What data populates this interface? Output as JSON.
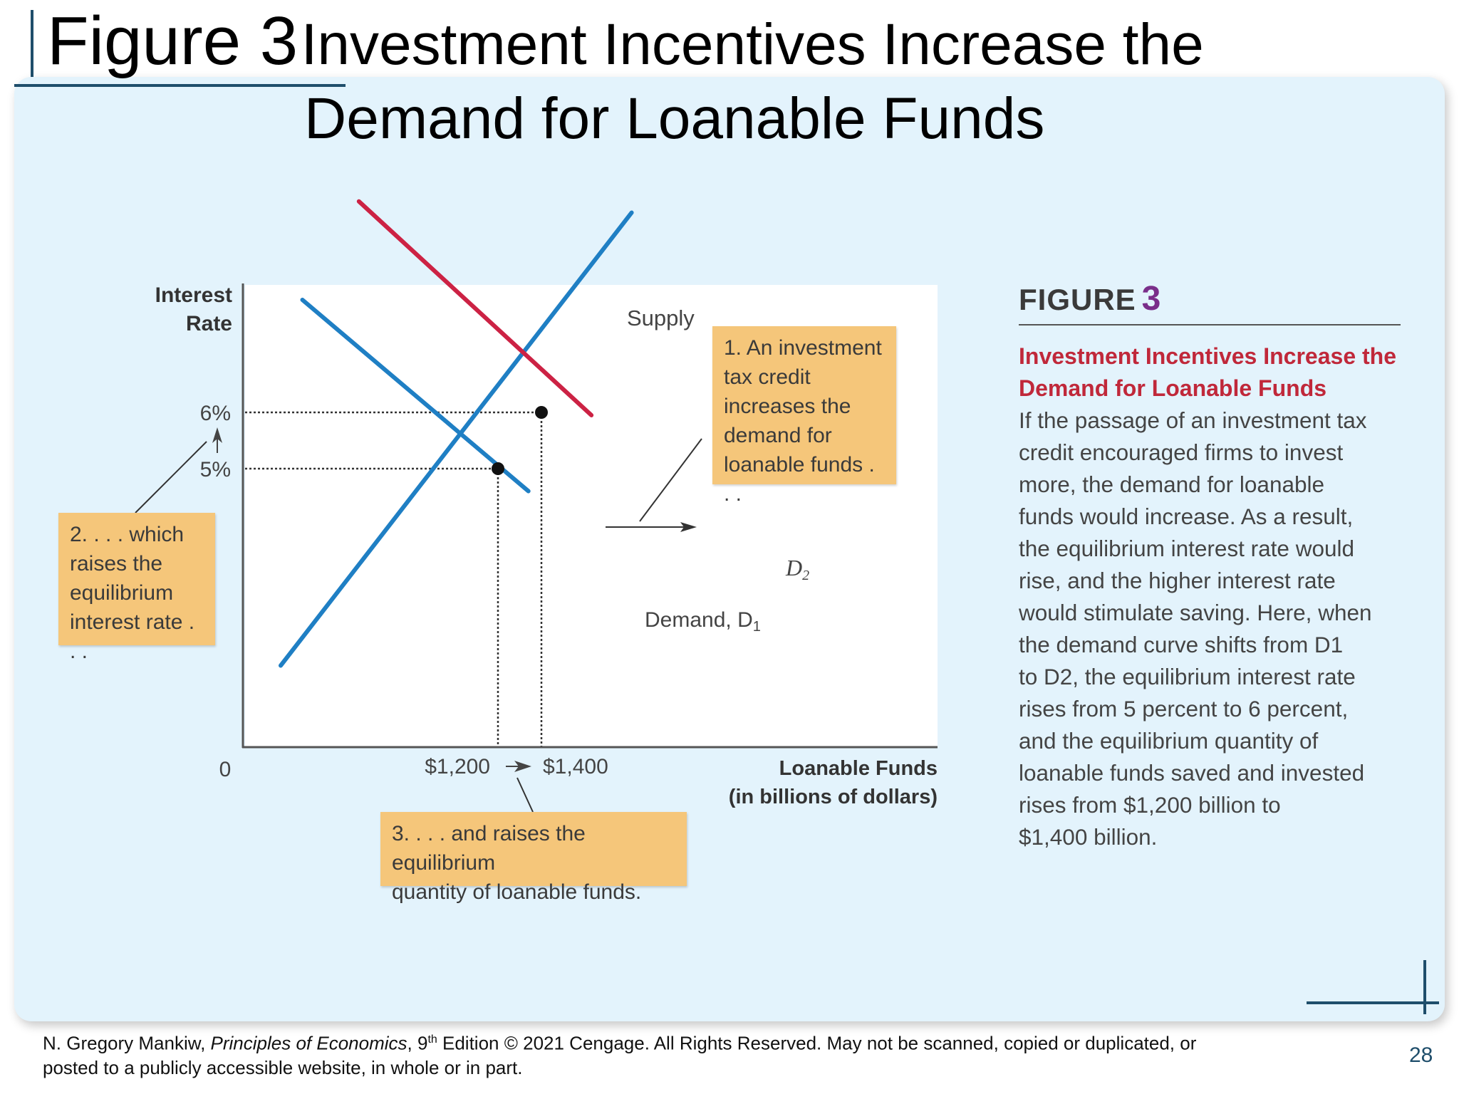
{
  "slide": {
    "title_fig": "Figure 3",
    "title_main": "Investment Incentives Increase the",
    "title_line2": "Demand for Loanable Funds",
    "page_number": "28"
  },
  "chart_data": {
    "type": "line",
    "ylabel_lines": [
      "Interest",
      "Rate"
    ],
    "xlabel_lines": [
      "Loanable Funds",
      "(in billions of dollars)"
    ],
    "origin_label": "0",
    "x_tick_labels": [
      "$1,200",
      "$1,400"
    ],
    "y_tick_labels": [
      "6%",
      "5%"
    ],
    "series": [
      {
        "name": "Supply",
        "color": "#1f7fc4",
        "points": [
          [
            200,
            1.5
          ],
          [
            1815,
            9.55
          ]
        ]
      },
      {
        "name": "Demand, D1",
        "color": "#1f7fc4",
        "points": [
          [
            300,
            8.0
          ],
          [
            1340,
            4.6
          ]
        ]
      },
      {
        "name": "D2",
        "color": "#cc2244",
        "points": [
          [
            560,
            9.75
          ],
          [
            1630,
            5.95
          ]
        ]
      }
    ],
    "equilibria": [
      {
        "label": "initial",
        "x": 1200,
        "y": 5
      },
      {
        "label": "new",
        "x": 1400,
        "y": 6
      }
    ],
    "series_labels": {
      "supply": "Supply",
      "demand_prefix": "Demand, D",
      "demand_sub": "1",
      "d2_prefix": "D",
      "d2_sub": "2"
    }
  },
  "callouts": {
    "one": [
      "1. An investment",
      "tax credit",
      "increases the",
      "demand for",
      "loanable funds . . ."
    ],
    "two": [
      "2. . . . which",
      "raises the",
      "equilibrium",
      "interest rate . . ."
    ],
    "three": [
      "3. . . . and raises the equilibrium",
      "quantity of loanable funds."
    ]
  },
  "sidebar": {
    "heading": "FIGURE",
    "heading_number": "3",
    "subtitle": "Investment Incentives Increase the Demand for Loanable Funds",
    "body_lines": [
      "If the passage of an investment tax",
      "credit encouraged firms to invest",
      "more, the demand for loanable",
      "funds would increase. As a result,",
      "the equilibrium interest rate would",
      "rise, and the higher interest rate",
      "would stimulate saving. Here, when",
      "the demand curve shifts from D1",
      "to D2, the equilibrium interest rate",
      "rises from 5 percent to 6 percent,",
      "and the equilibrium quantity of",
      "loanable funds saved and invested",
      "rises from $1,200 billion to",
      "$1,400 billion."
    ]
  },
  "footer": {
    "author": "N. Gregory Mankiw, ",
    "book": "Principles of Economics",
    "edition_sep": ", 9",
    "edition_sup": "th",
    "rest": " Edition © 2021 Cengage. All Rights Reserved. May not be scanned, copied or duplicated, or",
    "line2": "posted to a publicly accessible website, in whole or in part."
  }
}
